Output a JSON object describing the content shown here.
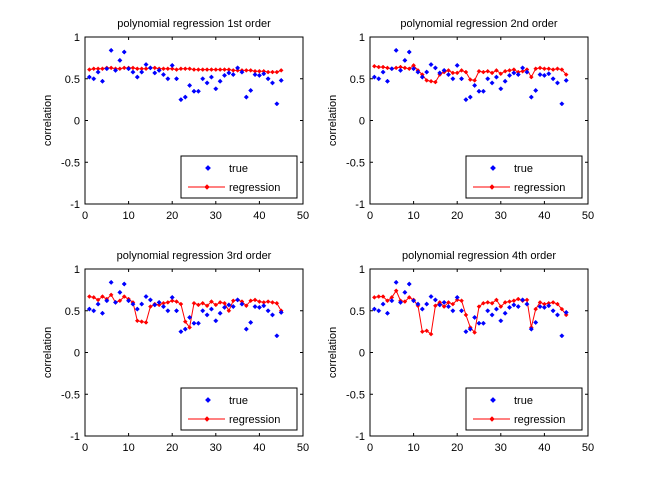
{
  "chart_data": [
    {
      "type": "scatter",
      "title": "polynomial regression 1st order",
      "xlabel": "",
      "ylabel": "correlation",
      "xlim": [
        0,
        50
      ],
      "ylim": [
        -1,
        1
      ],
      "xticks": [
        "0",
        "10",
        "20",
        "30",
        "40",
        "50"
      ],
      "yticks": [
        "-1",
        "-0.5",
        "0",
        "0.5",
        "1"
      ],
      "legend_position": "bottom-right",
      "series": [
        {
          "name": "true",
          "style": "markers",
          "color": "#0000ff",
          "x": [
            1,
            2,
            3,
            4,
            5,
            6,
            7,
            8,
            9,
            10,
            11,
            12,
            13,
            14,
            15,
            16,
            17,
            18,
            19,
            20,
            21,
            22,
            23,
            24,
            25,
            26,
            27,
            28,
            29,
            30,
            31,
            32,
            33,
            34,
            35,
            36,
            37,
            38,
            39,
            40,
            41,
            42,
            43,
            44,
            45
          ],
          "y": [
            0.52,
            0.5,
            0.58,
            0.47,
            0.62,
            0.84,
            0.6,
            0.72,
            0.82,
            0.62,
            0.58,
            0.52,
            0.58,
            0.67,
            0.63,
            0.57,
            0.6,
            0.55,
            0.5,
            0.66,
            0.5,
            0.25,
            0.28,
            0.42,
            0.35,
            0.35,
            0.5,
            0.45,
            0.52,
            0.38,
            0.47,
            0.54,
            0.57,
            0.55,
            0.63,
            0.58,
            0.28,
            0.36,
            0.55,
            0.54,
            0.56,
            0.5,
            0.45,
            0.2,
            0.48
          ]
        },
        {
          "name": "regression",
          "style": "line-markers",
          "color": "#ff0000",
          "x": [
            1,
            2,
            3,
            4,
            5,
            6,
            7,
            8,
            9,
            10,
            11,
            12,
            13,
            14,
            15,
            16,
            17,
            18,
            19,
            20,
            21,
            22,
            23,
            24,
            25,
            26,
            27,
            28,
            29,
            30,
            31,
            32,
            33,
            34,
            35,
            36,
            37,
            38,
            39,
            40,
            41,
            42,
            43,
            44,
            45
          ],
          "y": [
            0.61,
            0.62,
            0.62,
            0.62,
            0.63,
            0.63,
            0.62,
            0.62,
            0.63,
            0.63,
            0.63,
            0.62,
            0.62,
            0.62,
            0.63,
            0.63,
            0.62,
            0.62,
            0.62,
            0.62,
            0.61,
            0.62,
            0.62,
            0.62,
            0.61,
            0.61,
            0.61,
            0.61,
            0.61,
            0.61,
            0.61,
            0.61,
            0.61,
            0.6,
            0.6,
            0.6,
            0.6,
            0.6,
            0.59,
            0.59,
            0.59,
            0.58,
            0.58,
            0.58,
            0.6
          ]
        }
      ]
    },
    {
      "type": "scatter",
      "title": "polynomial regression 2nd order",
      "xlabel": "",
      "ylabel": "correlation",
      "xlim": [
        0,
        50
      ],
      "ylim": [
        -1,
        1
      ],
      "xticks": [
        "0",
        "10",
        "20",
        "30",
        "40",
        "50"
      ],
      "yticks": [
        "-1",
        "-0.5",
        "0",
        "0.5",
        "1"
      ],
      "legend_position": "bottom-right",
      "series": [
        {
          "name": "true",
          "style": "markers",
          "color": "#0000ff",
          "x": [
            1,
            2,
            3,
            4,
            5,
            6,
            7,
            8,
            9,
            10,
            11,
            12,
            13,
            14,
            15,
            16,
            17,
            18,
            19,
            20,
            21,
            22,
            23,
            24,
            25,
            26,
            27,
            28,
            29,
            30,
            31,
            32,
            33,
            34,
            35,
            36,
            37,
            38,
            39,
            40,
            41,
            42,
            43,
            44,
            45
          ],
          "y": [
            0.52,
            0.5,
            0.58,
            0.47,
            0.62,
            0.84,
            0.6,
            0.72,
            0.82,
            0.62,
            0.58,
            0.52,
            0.58,
            0.67,
            0.63,
            0.57,
            0.6,
            0.55,
            0.5,
            0.66,
            0.5,
            0.25,
            0.28,
            0.42,
            0.35,
            0.35,
            0.5,
            0.45,
            0.52,
            0.38,
            0.47,
            0.54,
            0.57,
            0.55,
            0.63,
            0.58,
            0.28,
            0.36,
            0.55,
            0.54,
            0.56,
            0.5,
            0.45,
            0.2,
            0.48
          ]
        },
        {
          "name": "regression",
          "style": "line-markers",
          "color": "#ff0000",
          "x": [
            1,
            2,
            3,
            4,
            5,
            6,
            7,
            8,
            9,
            10,
            11,
            12,
            13,
            14,
            15,
            16,
            17,
            18,
            19,
            20,
            21,
            22,
            23,
            24,
            25,
            26,
            27,
            28,
            29,
            30,
            31,
            32,
            33,
            34,
            35,
            36,
            37,
            38,
            39,
            40,
            41,
            42,
            43,
            44,
            45
          ],
          "y": [
            0.65,
            0.64,
            0.64,
            0.63,
            0.62,
            0.63,
            0.64,
            0.63,
            0.62,
            0.66,
            0.6,
            0.55,
            0.48,
            0.47,
            0.46,
            0.55,
            0.58,
            0.6,
            0.57,
            0.57,
            0.6,
            0.58,
            0.49,
            0.48,
            0.59,
            0.58,
            0.59,
            0.57,
            0.6,
            0.56,
            0.59,
            0.6,
            0.61,
            0.58,
            0.59,
            0.61,
            0.52,
            0.62,
            0.63,
            0.62,
            0.62,
            0.61,
            0.62,
            0.61,
            0.55
          ]
        }
      ]
    },
    {
      "type": "scatter",
      "title": "polynomial regression 3rd order",
      "xlabel": "",
      "ylabel": "correlation",
      "xlim": [
        0,
        50
      ],
      "ylim": [
        -1,
        1
      ],
      "xticks": [
        "0",
        "10",
        "20",
        "30",
        "40",
        "50"
      ],
      "yticks": [
        "-1",
        "-0.5",
        "0",
        "0.5",
        "1"
      ],
      "legend_position": "bottom-right",
      "series": [
        {
          "name": "true",
          "style": "markers",
          "color": "#0000ff",
          "x": [
            1,
            2,
            3,
            4,
            5,
            6,
            7,
            8,
            9,
            10,
            11,
            12,
            13,
            14,
            15,
            16,
            17,
            18,
            19,
            20,
            21,
            22,
            23,
            24,
            25,
            26,
            27,
            28,
            29,
            30,
            31,
            32,
            33,
            34,
            35,
            36,
            37,
            38,
            39,
            40,
            41,
            42,
            43,
            44,
            45
          ],
          "y": [
            0.52,
            0.5,
            0.58,
            0.47,
            0.62,
            0.84,
            0.6,
            0.72,
            0.82,
            0.62,
            0.58,
            0.52,
            0.58,
            0.67,
            0.63,
            0.57,
            0.6,
            0.55,
            0.5,
            0.66,
            0.5,
            0.25,
            0.28,
            0.42,
            0.35,
            0.35,
            0.5,
            0.45,
            0.52,
            0.38,
            0.47,
            0.54,
            0.57,
            0.55,
            0.63,
            0.58,
            0.28,
            0.36,
            0.55,
            0.54,
            0.56,
            0.5,
            0.45,
            0.2,
            0.48
          ]
        },
        {
          "name": "regression",
          "style": "line-markers",
          "color": "#ff0000",
          "x": [
            1,
            2,
            3,
            4,
            5,
            6,
            7,
            8,
            9,
            10,
            11,
            12,
            13,
            14,
            15,
            16,
            17,
            18,
            19,
            20,
            21,
            22,
            23,
            24,
            25,
            26,
            27,
            28,
            29,
            30,
            31,
            32,
            33,
            34,
            35,
            36,
            37,
            38,
            39,
            40,
            41,
            42,
            43,
            44,
            45
          ],
          "y": [
            0.67,
            0.66,
            0.63,
            0.67,
            0.64,
            0.69,
            0.6,
            0.62,
            0.67,
            0.64,
            0.6,
            0.38,
            0.37,
            0.36,
            0.55,
            0.58,
            0.57,
            0.59,
            0.6,
            0.62,
            0.61,
            0.58,
            0.37,
            0.3,
            0.59,
            0.57,
            0.59,
            0.56,
            0.61,
            0.57,
            0.6,
            0.59,
            0.5,
            0.62,
            0.63,
            0.61,
            0.56,
            0.62,
            0.63,
            0.61,
            0.6,
            0.61,
            0.6,
            0.59,
            0.5
          ]
        }
      ]
    },
    {
      "type": "scatter",
      "title": "polynomial regression 4th order",
      "xlabel": "",
      "ylabel": "correlation",
      "xlim": [
        0,
        50
      ],
      "ylim": [
        -1,
        1
      ],
      "xticks": [
        "0",
        "10",
        "20",
        "30",
        "40",
        "50"
      ],
      "yticks": [
        "-1",
        "-0.5",
        "0",
        "0.5",
        "1"
      ],
      "legend_position": "bottom-right",
      "series": [
        {
          "name": "true",
          "style": "markers",
          "color": "#0000ff",
          "x": [
            1,
            2,
            3,
            4,
            5,
            6,
            7,
            8,
            9,
            10,
            11,
            12,
            13,
            14,
            15,
            16,
            17,
            18,
            19,
            20,
            21,
            22,
            23,
            24,
            25,
            26,
            27,
            28,
            29,
            30,
            31,
            32,
            33,
            34,
            35,
            36,
            37,
            38,
            39,
            40,
            41,
            42,
            43,
            44,
            45
          ],
          "y": [
            0.52,
            0.5,
            0.58,
            0.47,
            0.62,
            0.84,
            0.6,
            0.72,
            0.82,
            0.62,
            0.58,
            0.52,
            0.58,
            0.67,
            0.63,
            0.57,
            0.6,
            0.55,
            0.5,
            0.66,
            0.5,
            0.25,
            0.28,
            0.42,
            0.35,
            0.35,
            0.5,
            0.45,
            0.52,
            0.38,
            0.47,
            0.54,
            0.57,
            0.55,
            0.63,
            0.58,
            0.28,
            0.36,
            0.55,
            0.54,
            0.56,
            0.5,
            0.45,
            0.2,
            0.48
          ]
        },
        {
          "name": "regression",
          "style": "line-markers",
          "color": "#ff0000",
          "x": [
            1,
            2,
            3,
            4,
            5,
            6,
            7,
            8,
            9,
            10,
            11,
            12,
            13,
            14,
            15,
            16,
            17,
            18,
            19,
            20,
            21,
            22,
            23,
            24,
            25,
            26,
            27,
            28,
            29,
            30,
            31,
            32,
            33,
            34,
            35,
            36,
            37,
            38,
            39,
            40,
            41,
            42,
            43,
            44,
            45
          ],
          "y": [
            0.66,
            0.67,
            0.67,
            0.62,
            0.66,
            0.74,
            0.62,
            0.61,
            0.66,
            0.63,
            0.56,
            0.25,
            0.26,
            0.22,
            0.56,
            0.6,
            0.55,
            0.6,
            0.58,
            0.63,
            0.62,
            0.45,
            0.3,
            0.24,
            0.55,
            0.59,
            0.6,
            0.59,
            0.63,
            0.55,
            0.6,
            0.61,
            0.62,
            0.64,
            0.62,
            0.63,
            0.3,
            0.52,
            0.6,
            0.58,
            0.59,
            0.6,
            0.58,
            0.52,
            0.45
          ]
        }
      ]
    }
  ]
}
